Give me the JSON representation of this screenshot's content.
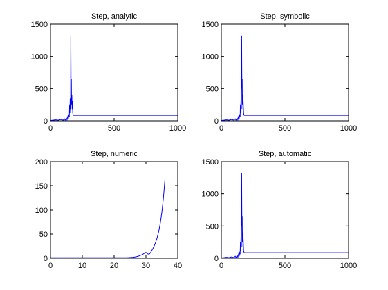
{
  "chart_data": [
    {
      "type": "line",
      "title": "Step, analytic",
      "xlim": [
        0,
        1000
      ],
      "ylim": [
        0,
        1500
      ],
      "xticks": [
        0,
        500,
        1000
      ],
      "yticks": [
        0,
        500,
        1000,
        1500
      ],
      "grid": false,
      "series_color": "#0000ff",
      "series": [
        {
          "x": [
            0,
            20,
            40,
            60,
            80,
            100,
            110,
            115,
            120,
            125,
            130,
            135,
            140,
            145,
            148,
            150,
            152,
            155,
            158,
            160,
            162,
            164,
            166,
            168,
            170,
            172,
            175,
            178,
            180,
            200,
            400,
            600,
            800,
            1000
          ],
          "y": [
            5,
            10,
            15,
            10,
            20,
            10,
            30,
            10,
            25,
            40,
            15,
            60,
            30,
            100,
            60,
            250,
            120,
            350,
            180,
            1320,
            500,
            650,
            250,
            400,
            180,
            300,
            120,
            90,
            85,
            85,
            85,
            85,
            85,
            85
          ]
        }
      ]
    },
    {
      "type": "line",
      "title": "Step, symbolic",
      "xlim": [
        0,
        1000
      ],
      "ylim": [
        0,
        1500
      ],
      "xticks": [
        0,
        500,
        1000
      ],
      "yticks": [
        0,
        500,
        1000,
        1500
      ],
      "grid": false,
      "series_color": "#0000ff",
      "series": [
        {
          "x": [
            0,
            20,
            40,
            60,
            80,
            100,
            110,
            115,
            120,
            125,
            130,
            135,
            140,
            145,
            148,
            150,
            152,
            155,
            158,
            160,
            162,
            164,
            166,
            168,
            170,
            172,
            175,
            178,
            180,
            200,
            400,
            600,
            800,
            1000
          ],
          "y": [
            5,
            10,
            15,
            10,
            20,
            10,
            30,
            10,
            25,
            40,
            15,
            60,
            30,
            100,
            60,
            250,
            120,
            350,
            180,
            1320,
            500,
            650,
            250,
            400,
            180,
            300,
            120,
            90,
            85,
            85,
            85,
            85,
            85,
            85
          ]
        }
      ]
    },
    {
      "type": "line",
      "title": "Step, numeric",
      "xlim": [
        0,
        40
      ],
      "ylim": [
        0,
        200
      ],
      "xticks": [
        0,
        10,
        20,
        30,
        40
      ],
      "yticks": [
        0,
        50,
        100,
        150,
        200
      ],
      "grid": false,
      "series_color": "#0000ff",
      "series": [
        {
          "x": [
            0,
            5,
            10,
            15,
            20,
            24,
            26,
            27,
            28,
            29,
            30,
            30.5,
            31,
            31.5,
            32,
            32.5,
            33,
            33.5,
            34,
            34.5,
            35,
            35.5,
            36
          ],
          "y": [
            1,
            1,
            1,
            1,
            1,
            1,
            2,
            3,
            5,
            8,
            12,
            9,
            8,
            12,
            18,
            24,
            32,
            42,
            55,
            72,
            95,
            125,
            165
          ]
        }
      ]
    },
    {
      "type": "line",
      "title": "Step, automatic",
      "xlim": [
        0,
        1000
      ],
      "ylim": [
        0,
        1500
      ],
      "xticks": [
        0,
        500,
        1000
      ],
      "yticks": [
        0,
        500,
        1000,
        1500
      ],
      "grid": false,
      "series_color": "#0000ff",
      "series": [
        {
          "x": [
            0,
            20,
            40,
            60,
            80,
            100,
            110,
            115,
            120,
            125,
            130,
            135,
            140,
            145,
            148,
            150,
            152,
            155,
            158,
            160,
            162,
            164,
            166,
            168,
            170,
            172,
            175,
            178,
            180,
            200,
            400,
            600,
            800,
            1000
          ],
          "y": [
            5,
            10,
            15,
            10,
            20,
            10,
            30,
            10,
            25,
            40,
            15,
            60,
            30,
            100,
            60,
            250,
            120,
            350,
            180,
            1320,
            500,
            650,
            250,
            400,
            180,
            300,
            120,
            90,
            85,
            85,
            85,
            85,
            85,
            85
          ]
        }
      ]
    }
  ]
}
